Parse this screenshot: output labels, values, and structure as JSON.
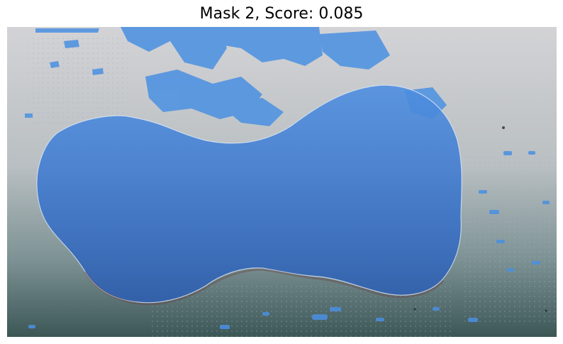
{
  "figure": {
    "title": "Mask 2, Score: 0.085"
  },
  "mask": {
    "color": "#3b82f6",
    "label": ""
  },
  "background": {
    "top_color": "#cfcfd2",
    "bottom_color": "#3f5a5a"
  }
}
